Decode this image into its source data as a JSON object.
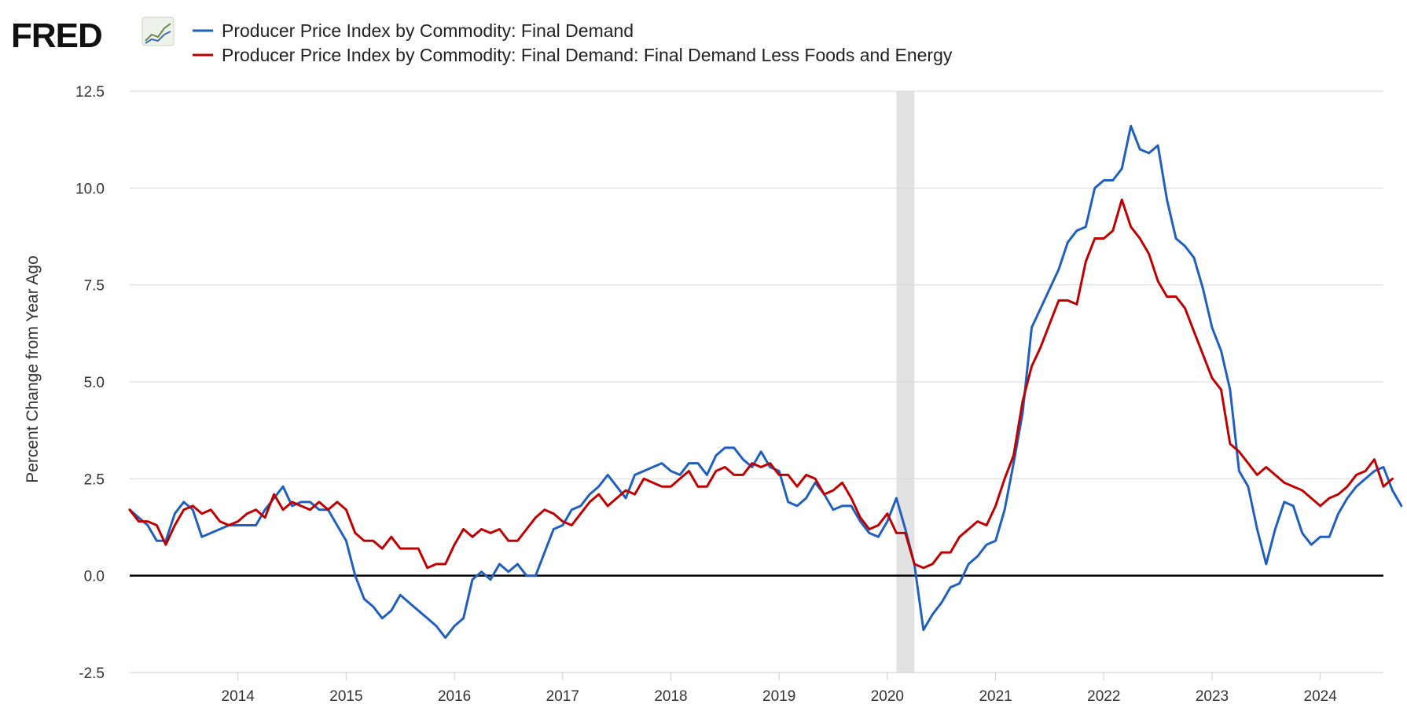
{
  "brand": {
    "logo_text": "FRED",
    "logo_icon": "trend-chart-icon"
  },
  "chart_data": {
    "type": "line",
    "title": "",
    "ylabel": "Percent Change from Year Ago",
    "xlabel": "",
    "ylim": [
      -2.5,
      12.5
    ],
    "yticks": [
      "12.5",
      "10.0",
      "7.5",
      "5.0",
      "2.5",
      "0.0",
      "-2.5"
    ],
    "xticks": [
      "2014",
      "2015",
      "2016",
      "2017",
      "2018",
      "2019",
      "2020",
      "2021",
      "2022",
      "2023",
      "2024"
    ],
    "x_start": "2013-01",
    "x_end": "2024-08",
    "grid": true,
    "legend_position": "top-left",
    "recession": {
      "start": "2020-02",
      "end": "2020-04"
    },
    "series": [
      {
        "name": "Producer Price Index by Commodity: Final Demand",
        "color": "#1f5fbf",
        "start": "2013-01",
        "values": [
          1.7,
          1.5,
          1.3,
          0.9,
          0.9,
          1.6,
          1.9,
          1.7,
          1.0,
          1.1,
          1.2,
          1.3,
          1.3,
          1.3,
          1.3,
          1.7,
          2.0,
          2.3,
          1.8,
          1.9,
          1.9,
          1.7,
          1.7,
          1.3,
          0.9,
          0.0,
          -0.6,
          -0.8,
          -1.1,
          -0.9,
          -0.5,
          -0.7,
          -0.9,
          -1.1,
          -1.3,
          -1.6,
          -1.3,
          -1.1,
          -0.1,
          0.1,
          -0.1,
          0.3,
          0.1,
          0.3,
          0.0,
          0.0,
          0.6,
          1.2,
          1.3,
          1.7,
          1.8,
          2.1,
          2.3,
          2.6,
          2.3,
          2.0,
          2.6,
          2.7,
          2.8,
          2.9,
          2.7,
          2.6,
          2.9,
          2.9,
          2.6,
          3.1,
          3.3,
          3.3,
          3.0,
          2.8,
          3.2,
          2.8,
          2.7,
          1.9,
          1.8,
          2.0,
          2.4,
          2.1,
          1.7,
          1.8,
          1.8,
          1.4,
          1.1,
          1.0,
          1.4,
          2.0,
          1.2,
          0.3,
          -1.4,
          -1.0,
          -0.7,
          -0.3,
          -0.2,
          0.3,
          0.5,
          0.8,
          0.9,
          1.7,
          2.9,
          4.2,
          6.4,
          6.9,
          7.4,
          7.9,
          8.6,
          8.9,
          9.0,
          10.0,
          10.2,
          10.2,
          10.5,
          11.6,
          11.0,
          10.9,
          11.1,
          9.7,
          8.7,
          8.5,
          8.2,
          7.4,
          6.4,
          5.8,
          4.8,
          2.7,
          2.3,
          1.2,
          0.3,
          1.2,
          1.9,
          1.8,
          1.1,
          0.8,
          1.0,
          1.0,
          1.6,
          2.0,
          2.3,
          2.5,
          2.7,
          2.8,
          2.2,
          1.8
        ]
      },
      {
        "name": "Producer Price Index by Commodity: Final Demand: Final Demand Less Foods and Energy",
        "color": "#c00000",
        "start": "2013-01",
        "values": [
          1.7,
          1.4,
          1.4,
          1.3,
          0.8,
          1.3,
          1.7,
          1.8,
          1.6,
          1.7,
          1.4,
          1.3,
          1.4,
          1.6,
          1.7,
          1.5,
          2.1,
          1.7,
          1.9,
          1.8,
          1.7,
          1.9,
          1.7,
          1.9,
          1.7,
          1.1,
          0.9,
          0.9,
          0.7,
          1.0,
          0.7,
          0.7,
          0.7,
          0.2,
          0.3,
          0.3,
          0.8,
          1.2,
          1.0,
          1.2,
          1.1,
          1.2,
          0.9,
          0.9,
          1.2,
          1.5,
          1.7,
          1.6,
          1.4,
          1.3,
          1.6,
          1.9,
          2.1,
          1.8,
          2.0,
          2.2,
          2.1,
          2.5,
          2.4,
          2.3,
          2.3,
          2.5,
          2.7,
          2.3,
          2.3,
          2.7,
          2.8,
          2.6,
          2.6,
          2.9,
          2.8,
          2.9,
          2.6,
          2.6,
          2.3,
          2.6,
          2.5,
          2.1,
          2.2,
          2.4,
          2.0,
          1.5,
          1.2,
          1.3,
          1.6,
          1.1,
          1.1,
          0.3,
          0.2,
          0.3,
          0.6,
          0.6,
          1.0,
          1.2,
          1.4,
          1.3,
          1.8,
          2.5,
          3.1,
          4.5,
          5.4,
          5.9,
          6.5,
          7.1,
          7.1,
          7.0,
          8.1,
          8.7,
          8.7,
          8.9,
          9.7,
          9.0,
          8.7,
          8.3,
          7.6,
          7.2,
          7.2,
          6.9,
          6.3,
          5.7,
          5.1,
          4.8,
          3.4,
          3.2,
          2.9,
          2.6,
          2.8,
          2.6,
          2.4,
          2.3,
          2.2,
          2.0,
          1.8,
          2.0,
          2.1,
          2.3,
          2.6,
          2.7,
          3.0,
          2.3,
          2.5
        ]
      }
    ]
  }
}
